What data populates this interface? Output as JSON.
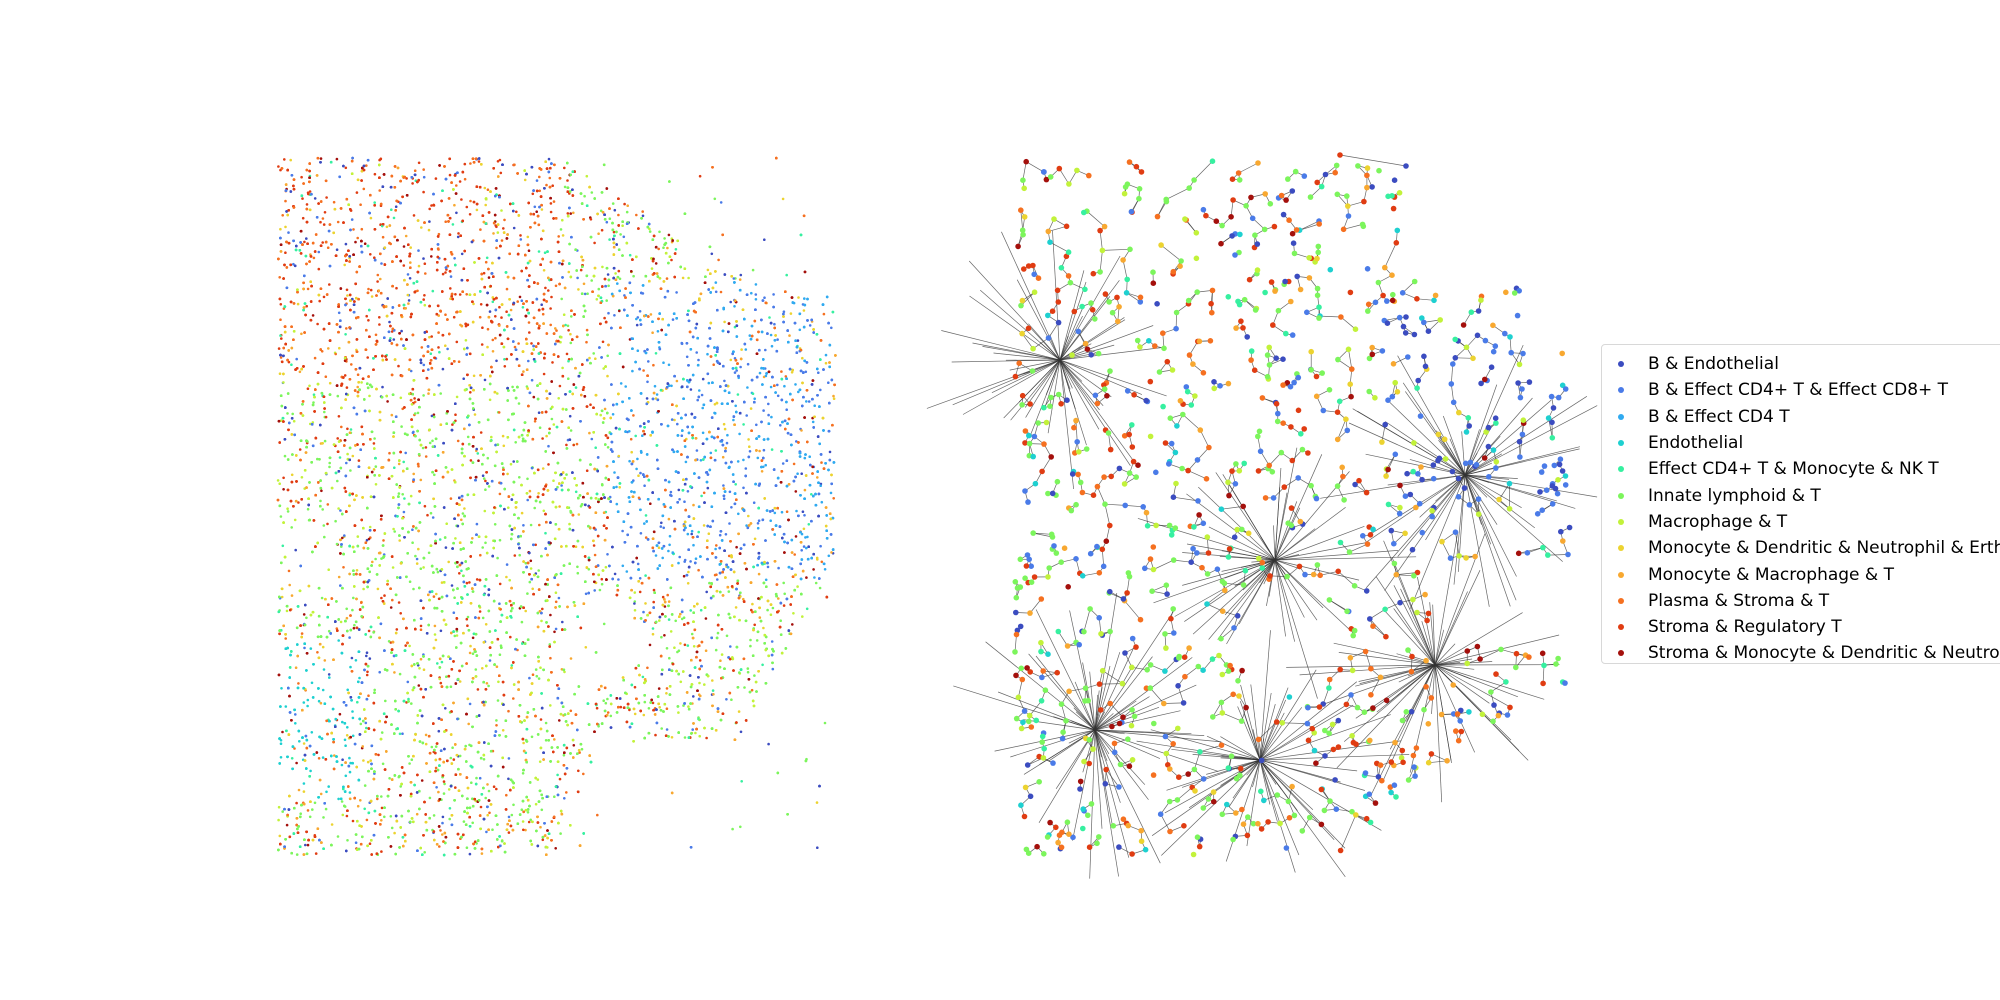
{
  "chart_data": [
    {
      "type": "scatter",
      "title": "",
      "xlabel": "",
      "ylabel": "",
      "axes_visible": false,
      "grid": false,
      "description_of_content": "spatial cell map colored by cell-type cluster"
    },
    {
      "type": "scatter",
      "title": "",
      "xlabel": "",
      "ylabel": "",
      "axes_visible": false,
      "grid": false,
      "edges": true,
      "legend_position": "right"
    }
  ],
  "legend": {
    "items": [
      {
        "label": "B & Endothelial",
        "color": "#3b4cc0"
      },
      {
        "label": "B & Effect CD4+ T & Effect CD8+ T",
        "color": "#4a7be8"
      },
      {
        "label": "B & Effect CD4 T",
        "color": "#30aaf0"
      },
      {
        "label": "Endothelial",
        "color": "#1ed0d0"
      },
      {
        "label": "Effect CD4+ T & Monocyte & NK T",
        "color": "#36f0a0"
      },
      {
        "label": "Innate lymphoid & T",
        "color": "#7cf55c"
      },
      {
        "label": "Macrophage & T",
        "color": "#c2f23a"
      },
      {
        "label": "Monocyte & Dendritic & Neutrophil & Erthyroid",
        "color": "#ecd330"
      },
      {
        "label": "Monocyte & Macrophage & T",
        "color": "#f8a830"
      },
      {
        "label": "Plasma & Stroma & T",
        "color": "#f57020"
      },
      {
        "label": "Stroma & Regulatory T",
        "color": "#e03c12"
      },
      {
        "label": "Stroma & Monocyte & Dendritic & Neutrophil",
        "color": "#a4100c"
      }
    ]
  }
}
